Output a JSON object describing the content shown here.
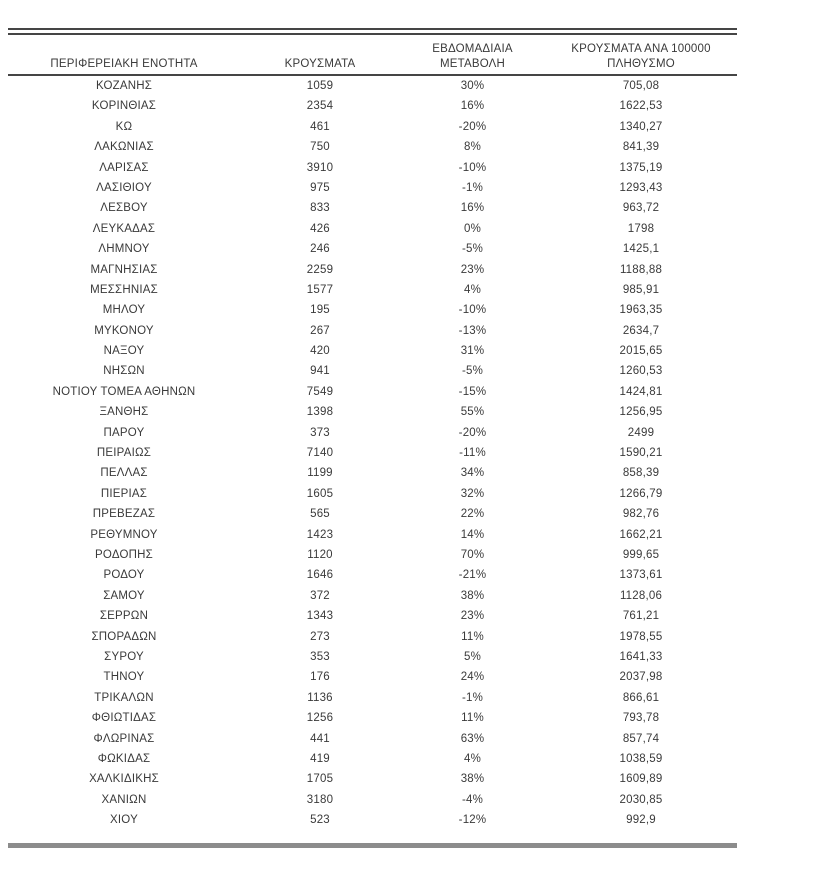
{
  "table": {
    "columns": [
      "ΠΕΡΙΦΕΡΕΙΑΚΗ ΕΝΟΤΗΤΑ",
      "ΚΡΟΥΣΜΑΤΑ",
      "ΕΒΔΟΜΑΔΙΑΙΑ ΜΕΤΑΒΟΛΗ",
      "ΚΡΟΥΣΜΑΤΑ ΑΝΑ 100000 ΠΛΗΘΥΣΜΟ"
    ],
    "rows": [
      [
        "ΚΟΖΑΝΗΣ",
        "1059",
        "30%",
        "705,08"
      ],
      [
        "ΚΟΡΙΝΘΙΑΣ",
        "2354",
        "16%",
        "1622,53"
      ],
      [
        "ΚΩ",
        "461",
        "-20%",
        "1340,27"
      ],
      [
        "ΛΑΚΩΝΙΑΣ",
        "750",
        "8%",
        "841,39"
      ],
      [
        "ΛΑΡΙΣΑΣ",
        "3910",
        "-10%",
        "1375,19"
      ],
      [
        "ΛΑΣΙΘΙΟΥ",
        "975",
        "-1%",
        "1293,43"
      ],
      [
        "ΛΕΣΒΟΥ",
        "833",
        "16%",
        "963,72"
      ],
      [
        "ΛΕΥΚΑΔΑΣ",
        "426",
        "0%",
        "1798"
      ],
      [
        "ΛΗΜΝΟΥ",
        "246",
        "-5%",
        "1425,1"
      ],
      [
        "ΜΑΓΝΗΣΙΑΣ",
        "2259",
        "23%",
        "1188,88"
      ],
      [
        "ΜΕΣΣΗΝΙΑΣ",
        "1577",
        "4%",
        "985,91"
      ],
      [
        "ΜΗΛΟΥ",
        "195",
        "-10%",
        "1963,35"
      ],
      [
        "ΜΥΚΟΝΟΥ",
        "267",
        "-13%",
        "2634,7"
      ],
      [
        "ΝΑΞΟΥ",
        "420",
        "31%",
        "2015,65"
      ],
      [
        "ΝΗΣΩΝ",
        "941",
        "-5%",
        "1260,53"
      ],
      [
        "ΝΟΤΙΟΥ ΤΟΜΕΑ ΑΘΗΝΩΝ",
        "7549",
        "-15%",
        "1424,81"
      ],
      [
        "ΞΑΝΘΗΣ",
        "1398",
        "55%",
        "1256,95"
      ],
      [
        "ΠΑΡΟΥ",
        "373",
        "-20%",
        "2499"
      ],
      [
        "ΠΕΙΡΑΙΩΣ",
        "7140",
        "-11%",
        "1590,21"
      ],
      [
        "ΠΕΛΛΑΣ",
        "1199",
        "34%",
        "858,39"
      ],
      [
        "ΠΙΕΡΙΑΣ",
        "1605",
        "32%",
        "1266,79"
      ],
      [
        "ΠΡΕΒΕΖΑΣ",
        "565",
        "22%",
        "982,76"
      ],
      [
        "ΡΕΘΥΜΝΟΥ",
        "1423",
        "14%",
        "1662,21"
      ],
      [
        "ΡΟΔΟΠΗΣ",
        "1120",
        "70%",
        "999,65"
      ],
      [
        "ΡΟΔΟΥ",
        "1646",
        "-21%",
        "1373,61"
      ],
      [
        "ΣΑΜΟΥ",
        "372",
        "38%",
        "1128,06"
      ],
      [
        "ΣΕΡΡΩΝ",
        "1343",
        "23%",
        "761,21"
      ],
      [
        "ΣΠΟΡΑΔΩΝ",
        "273",
        "11%",
        "1978,55"
      ],
      [
        "ΣΥΡΟΥ",
        "353",
        "5%",
        "1641,33"
      ],
      [
        "ΤΗΝΟΥ",
        "176",
        "24%",
        "2037,98"
      ],
      [
        "ΤΡΙΚΑΛΩΝ",
        "1136",
        "-1%",
        "866,61"
      ],
      [
        "ΦΘΙΩΤΙΔΑΣ",
        "1256",
        "11%",
        "793,78"
      ],
      [
        "ΦΛΩΡΙΝΑΣ",
        "441",
        "63%",
        "857,74"
      ],
      [
        "ΦΩΚΙΔΑΣ",
        "419",
        "4%",
        "1038,59"
      ],
      [
        "ΧΑΛΚΙΔΙΚΗΣ",
        "1705",
        "38%",
        "1609,89"
      ],
      [
        "ΧΑΝΙΩΝ",
        "3180",
        "-4%",
        "2030,85"
      ],
      [
        "ΧΙΟΥ",
        "523",
        "-12%",
        "992,9"
      ]
    ]
  },
  "colors": {
    "text": "#3a3a3a",
    "rule_dark": "#454545",
    "rule_thick_gray": "#8c8c8c",
    "background": "#ffffff"
  }
}
